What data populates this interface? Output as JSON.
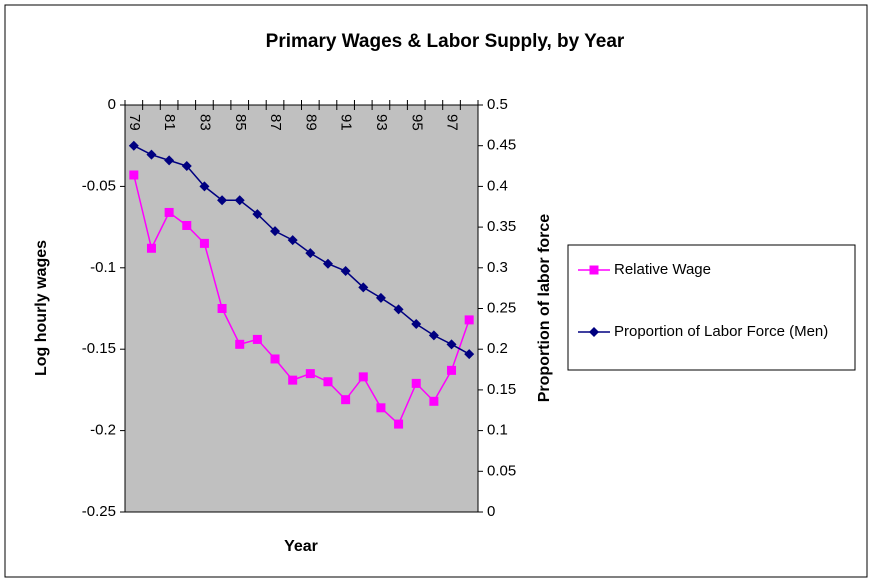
{
  "chart_data": {
    "type": "line",
    "title": "Primary Wages & Labor Supply, by Year",
    "x_label": "Year",
    "y_label": "Log hourly wages",
    "y2_label": "Proportion of labor force",
    "categories": [
      "79",
      null,
      "81",
      null,
      "83",
      null,
      "85",
      null,
      "87",
      null,
      "89",
      null,
      "91",
      null,
      "93",
      null,
      "95",
      null,
      "97",
      null
    ],
    "series": [
      {
        "name": "Relative Wage",
        "color": "#ff00ff",
        "marker": "square",
        "axis": "y",
        "values": [
          -0.043,
          -0.088,
          -0.066,
          -0.074,
          -0.085,
          -0.125,
          -0.147,
          -0.144,
          -0.156,
          -0.169,
          -0.165,
          -0.17,
          -0.181,
          -0.167,
          -0.186,
          -0.196,
          -0.171,
          -0.182,
          -0.163,
          -0.132
        ]
      },
      {
        "name": "Proportion of Labor Force (Men)",
        "color": "#000080",
        "marker": "diamond",
        "axis": "y2",
        "values": [
          0.45,
          0.439,
          0.432,
          0.425,
          0.4,
          0.383,
          0.383,
          0.366,
          0.345,
          0.334,
          0.318,
          0.305,
          0.296,
          0.276,
          0.263,
          0.249,
          0.231,
          0.217,
          0.206,
          0.194
        ]
      }
    ],
    "ylim": [
      -0.25,
      0
    ],
    "yticks": [
      0,
      -0.05,
      -0.1,
      -0.15,
      -0.2,
      -0.25
    ],
    "y2lim": [
      0,
      0.5
    ],
    "y2ticks": [
      0.5,
      0.45,
      0.4,
      0.35,
      0.3,
      0.25,
      0.2,
      0.15,
      0.1,
      0.05,
      0
    ],
    "legend": "right",
    "plot_background": "#c0c0c0"
  }
}
